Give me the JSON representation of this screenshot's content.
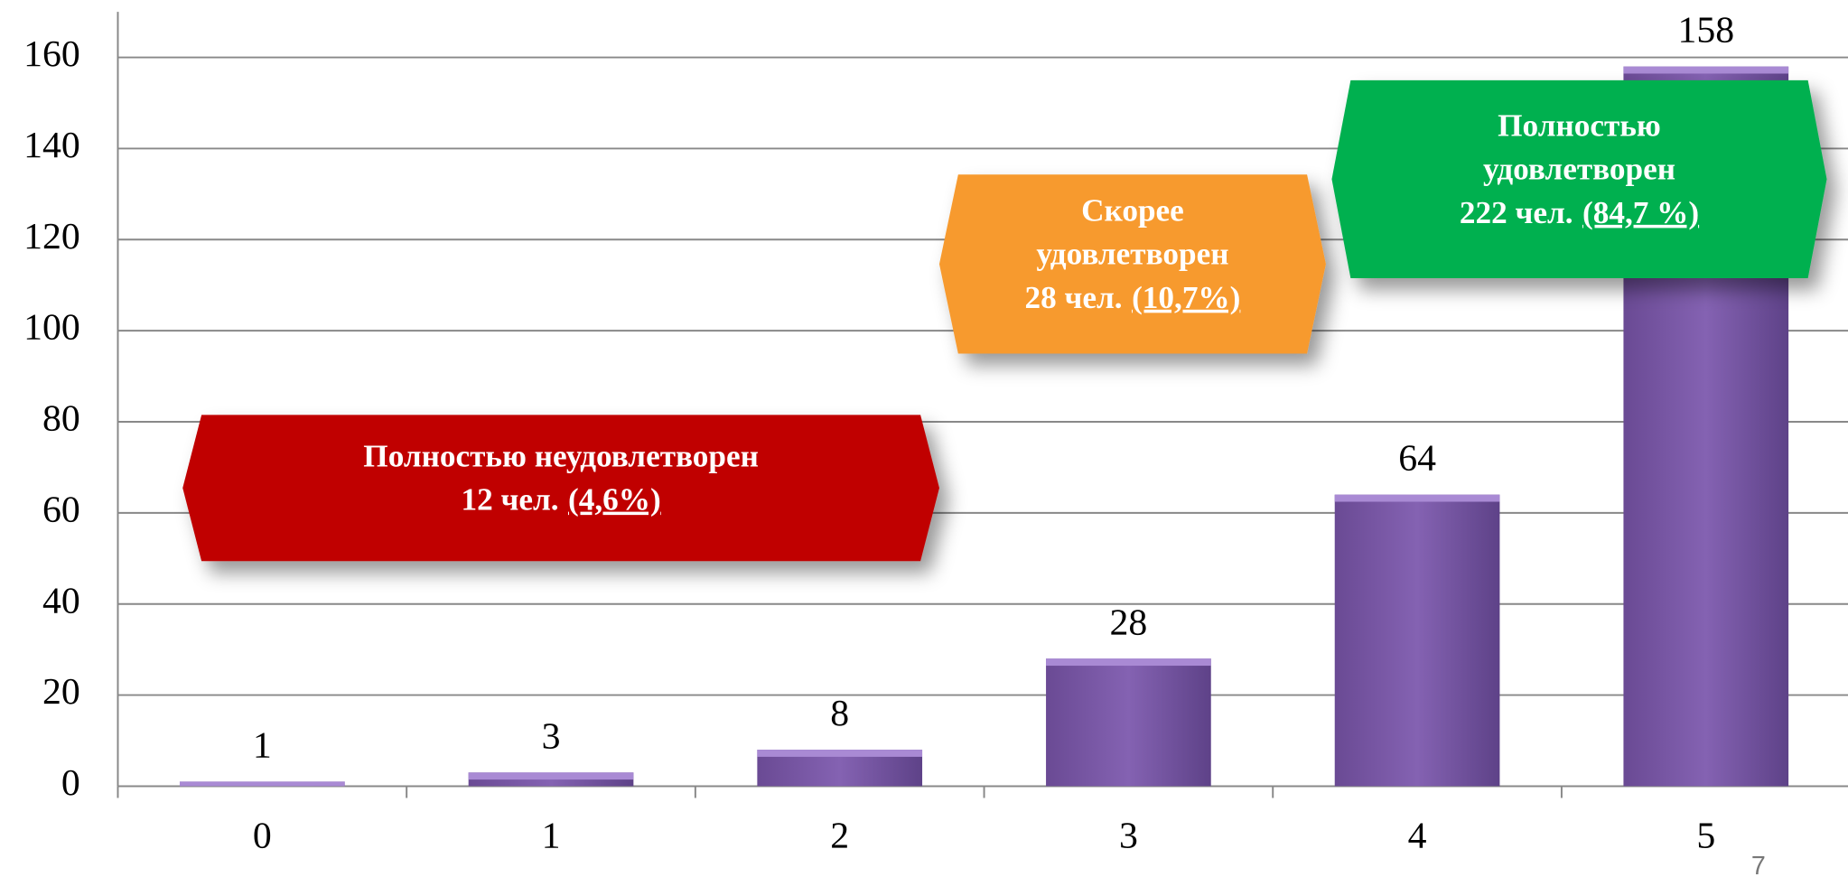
{
  "chart_data": {
    "type": "bar",
    "categories": [
      "0",
      "1",
      "2",
      "3",
      "4",
      "5"
    ],
    "values": [
      1,
      3,
      8,
      28,
      64,
      158
    ],
    "color": "#7b5aa6",
    "ylim": [
      0,
      170
    ],
    "yticks": [
      0,
      20,
      40,
      60,
      80,
      100,
      120,
      140,
      160
    ],
    "grid": true,
    "annotations": [
      {
        "lines": [
          "Полностью неудовлетворен",
          "12 чел."
        ],
        "percent": "(4,6%)",
        "color": "#c00000"
      },
      {
        "lines": [
          "Скорее",
          "удовлетворен",
          "28 чел."
        ],
        "percent": "(10,7%)",
        "color": "#f79a2e"
      },
      {
        "lines": [
          "Полностью",
          "удовлетворен",
          "222 чел."
        ],
        "percent": "(84,7 %)",
        "color": "#00b050"
      }
    ]
  },
  "page_number": "7"
}
